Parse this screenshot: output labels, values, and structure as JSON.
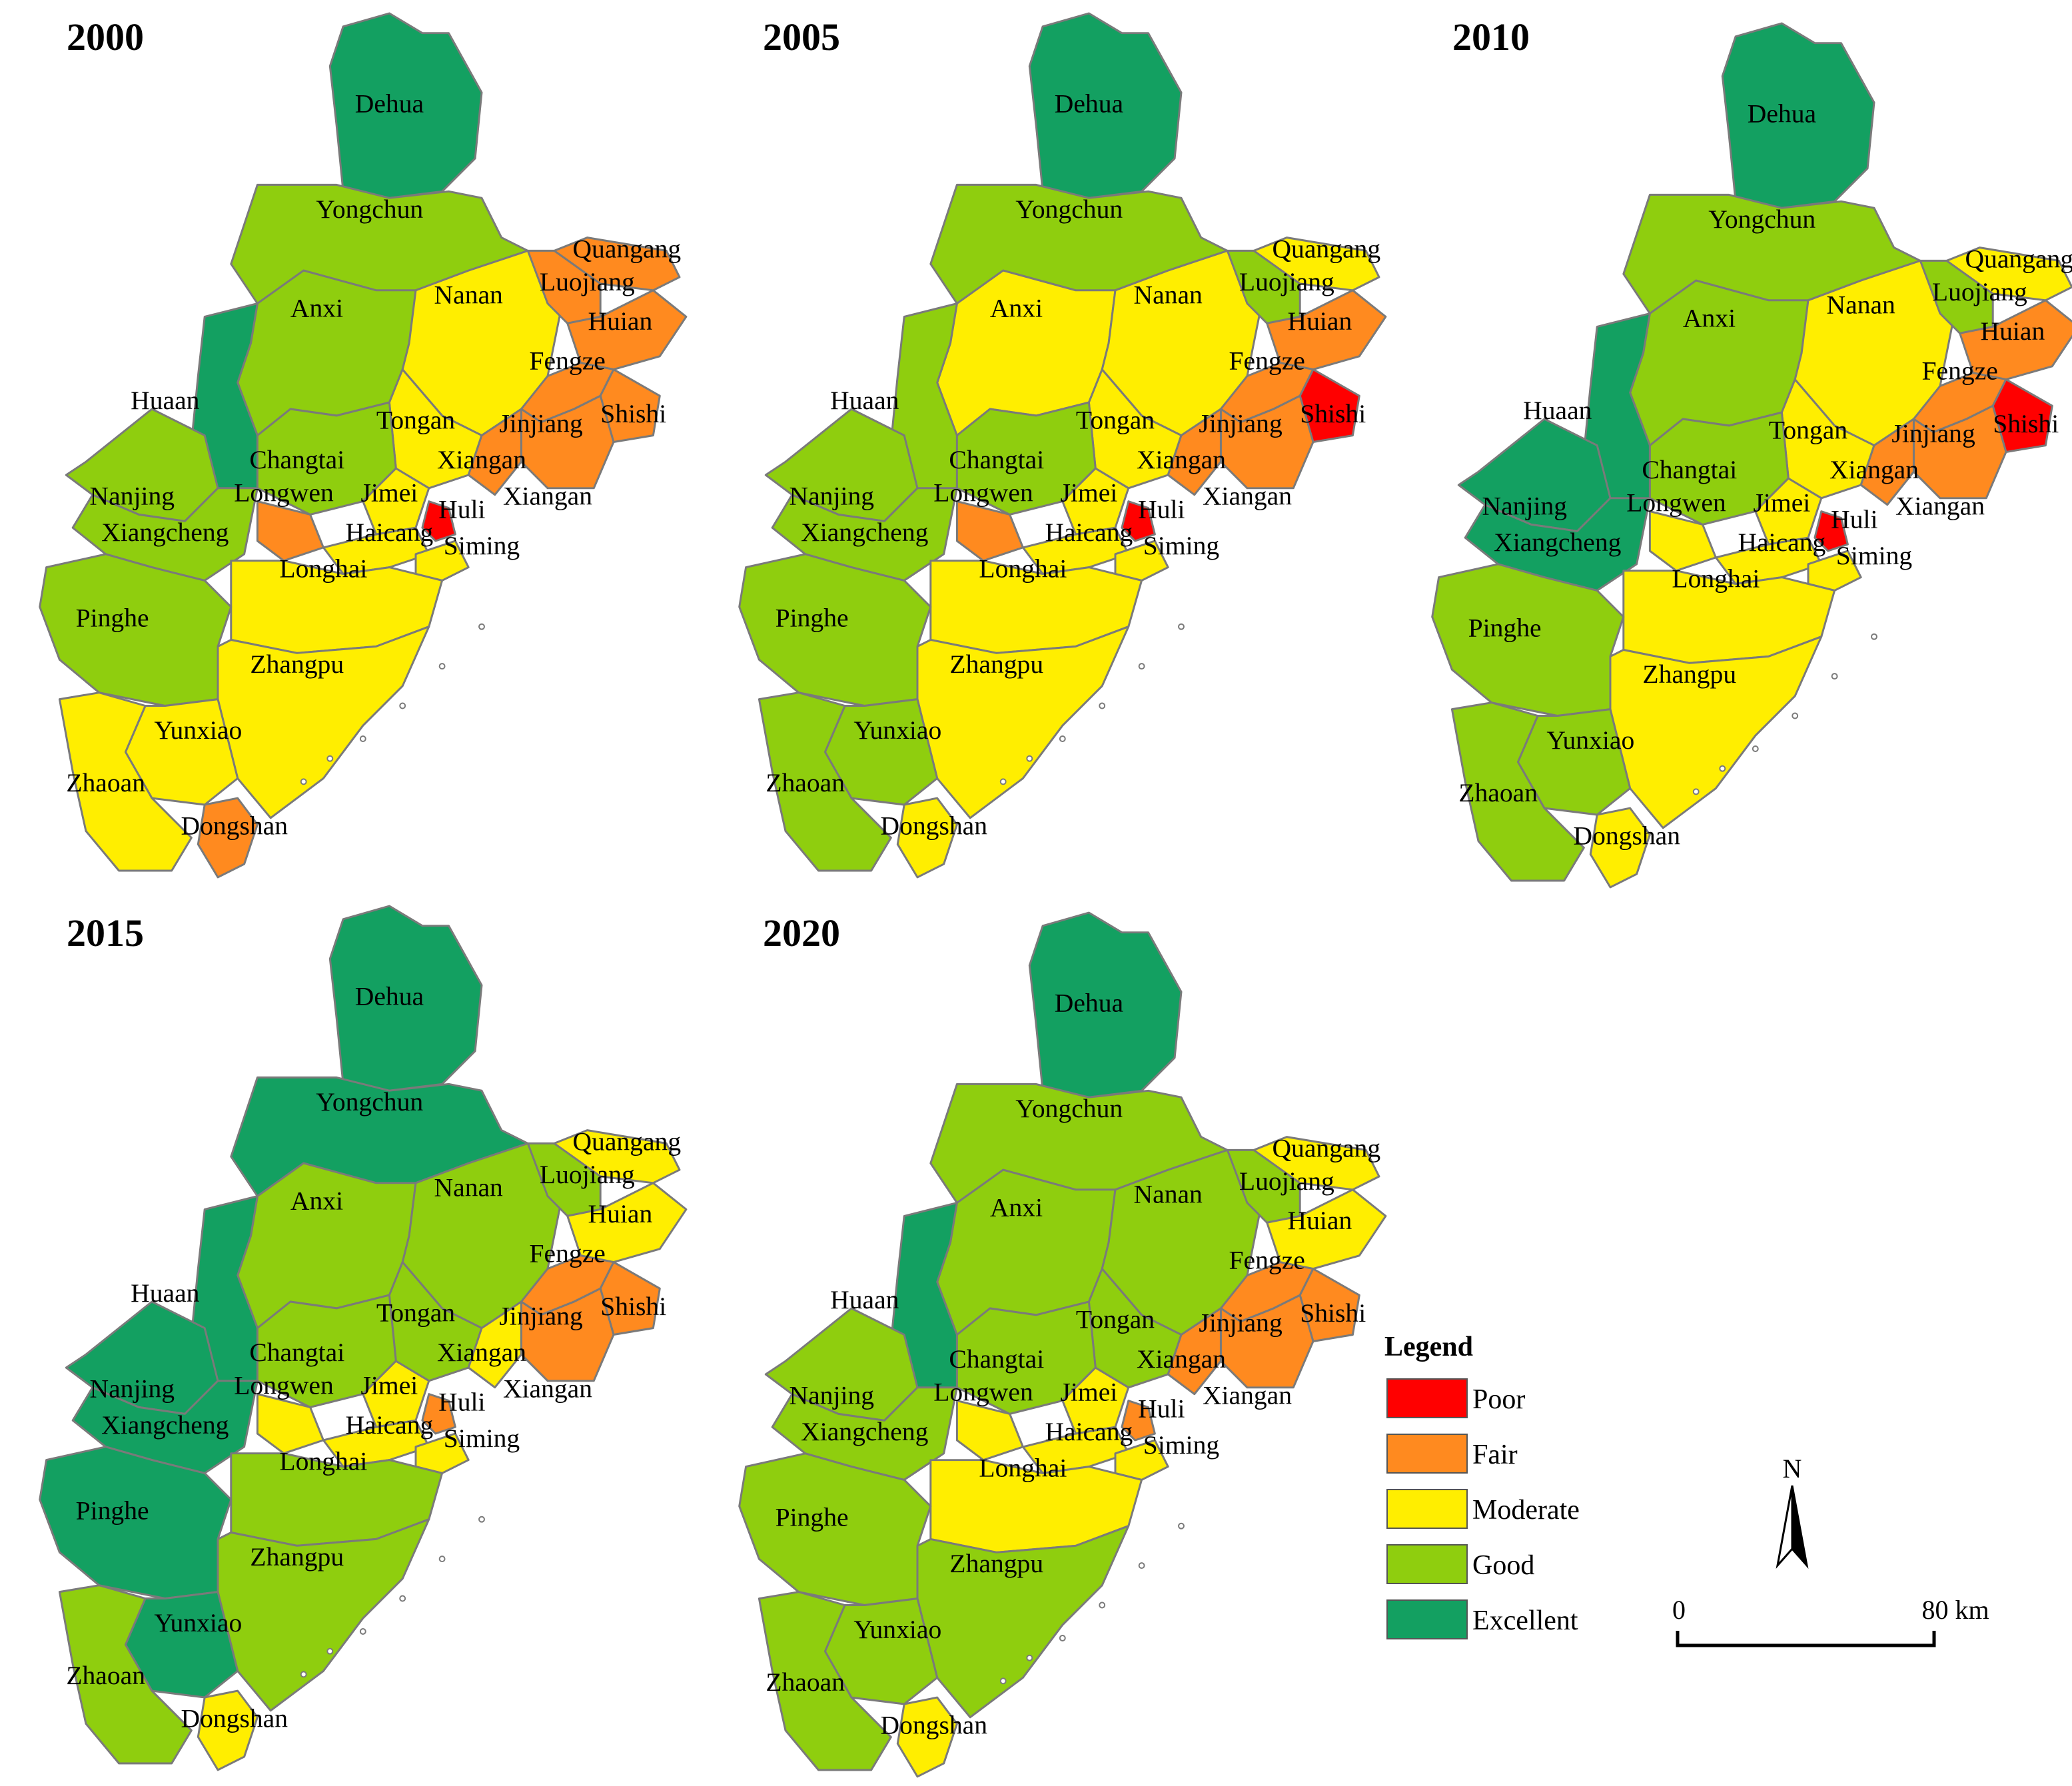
{
  "map_titles": [
    "2000",
    "2005",
    "2010",
    "2015",
    "2020"
  ],
  "colors": {
    "Poor": "#ff0000",
    "Fair": "#ff8a1f",
    "Moderate": "#ffee00",
    "Good": "#8fce0e",
    "Excellent": "#13a061"
  },
  "district_names": [
    "Dehua",
    "Yongchun",
    "Anxi",
    "Nanan",
    "Quangang",
    "Luojiang",
    "Huian",
    "Fengze",
    "Shishi",
    "Jinjiang",
    "Tongan",
    "Xiangan",
    "Huaan",
    "Changtai",
    "Nanjing",
    "Xiangcheng",
    "Longwen",
    "Jimei",
    "Haicang",
    "Huli",
    "Siming",
    "Longhai",
    "Pinghe",
    "Zhangpu",
    "Yunxiao",
    "Zhaoan",
    "Dongshan"
  ],
  "label_texts": [
    "Dehua",
    "Yongchun",
    "Anxi",
    "Nanan",
    "Quangang",
    "Luojiang",
    "Huian",
    "Fengze",
    "Shishi",
    "Jinjiang",
    "Tongan",
    "Xiangan",
    "Xiangan",
    "Huaan",
    "Changtai",
    "Nanjing",
    "Xiangcheng",
    "Longwen",
    "Jimei",
    "Haicang",
    "Huli",
    "Siming",
    "Longhai",
    "Pinghe",
    "Zhangpu",
    "Yunxiao",
    "Zhaoan",
    "Dongshan"
  ],
  "map_grades": [
    [
      "Excellent",
      "Good",
      "Good",
      "Moderate",
      "Fair",
      "Fair",
      "Fair",
      "Fair",
      "Fair",
      "Fair",
      "Moderate",
      "Fair",
      "Excellent",
      "Good",
      "Good",
      "Good",
      "Fair",
      "Moderate",
      "Moderate",
      "Poor",
      "Moderate",
      "Moderate",
      "Good",
      "Moderate",
      "Moderate",
      "Moderate",
      "Fair"
    ],
    [
      "Excellent",
      "Good",
      "Moderate",
      "Moderate",
      "Moderate",
      "Good",
      "Fair",
      "Fair",
      "Poor",
      "Fair",
      "Moderate",
      "Fair",
      "Good",
      "Good",
      "Good",
      "Good",
      "Fair",
      "Moderate",
      "Moderate",
      "Poor",
      "Moderate",
      "Moderate",
      "Good",
      "Moderate",
      "Good",
      "Good",
      "Moderate"
    ],
    [
      "Excellent",
      "Good",
      "Good",
      "Moderate",
      "Moderate",
      "Good",
      "Fair",
      "Fair",
      "Poor",
      "Fair",
      "Moderate",
      "Fair",
      "Excellent",
      "Good",
      "Excellent",
      "Excellent",
      "Moderate",
      "Moderate",
      "Moderate",
      "Poor",
      "Moderate",
      "Moderate",
      "Good",
      "Moderate",
      "Good",
      "Good",
      "Moderate"
    ],
    [
      "Excellent",
      "Excellent",
      "Good",
      "Good",
      "Moderate",
      "Good",
      "Moderate",
      "Fair",
      "Fair",
      "Fair",
      "Good",
      "Moderate",
      "Excellent",
      "Good",
      "Excellent",
      "Excellent",
      "Moderate",
      "Moderate",
      "Moderate",
      "Fair",
      "Moderate",
      "Good",
      "Excellent",
      "Good",
      "Excellent",
      "Good",
      "Moderate"
    ],
    [
      "Excellent",
      "Good",
      "Good",
      "Good",
      "Moderate",
      "Good",
      "Moderate",
      "Fair",
      "Fair",
      "Fair",
      "Good",
      "Fair",
      "Excellent",
      "Good",
      "Good",
      "Good",
      "Moderate",
      "Moderate",
      "Moderate",
      "Fair",
      "Moderate",
      "Moderate",
      "Good",
      "Good",
      "Good",
      "Good",
      "Moderate"
    ]
  ],
  "legend": {
    "title": "Legend",
    "items": [
      {
        "label": "Poor",
        "color": "#ff0000"
      },
      {
        "label": "Fair",
        "color": "#ff8a1f"
      },
      {
        "label": "Moderate",
        "color": "#ffee00"
      },
      {
        "label": "Good",
        "color": "#8fce0e"
      },
      {
        "label": "Excellent",
        "color": "#13a061"
      }
    ]
  },
  "north_arrow": {
    "label": "N"
  },
  "scale_bar": {
    "start": "0",
    "end": "80 km"
  }
}
